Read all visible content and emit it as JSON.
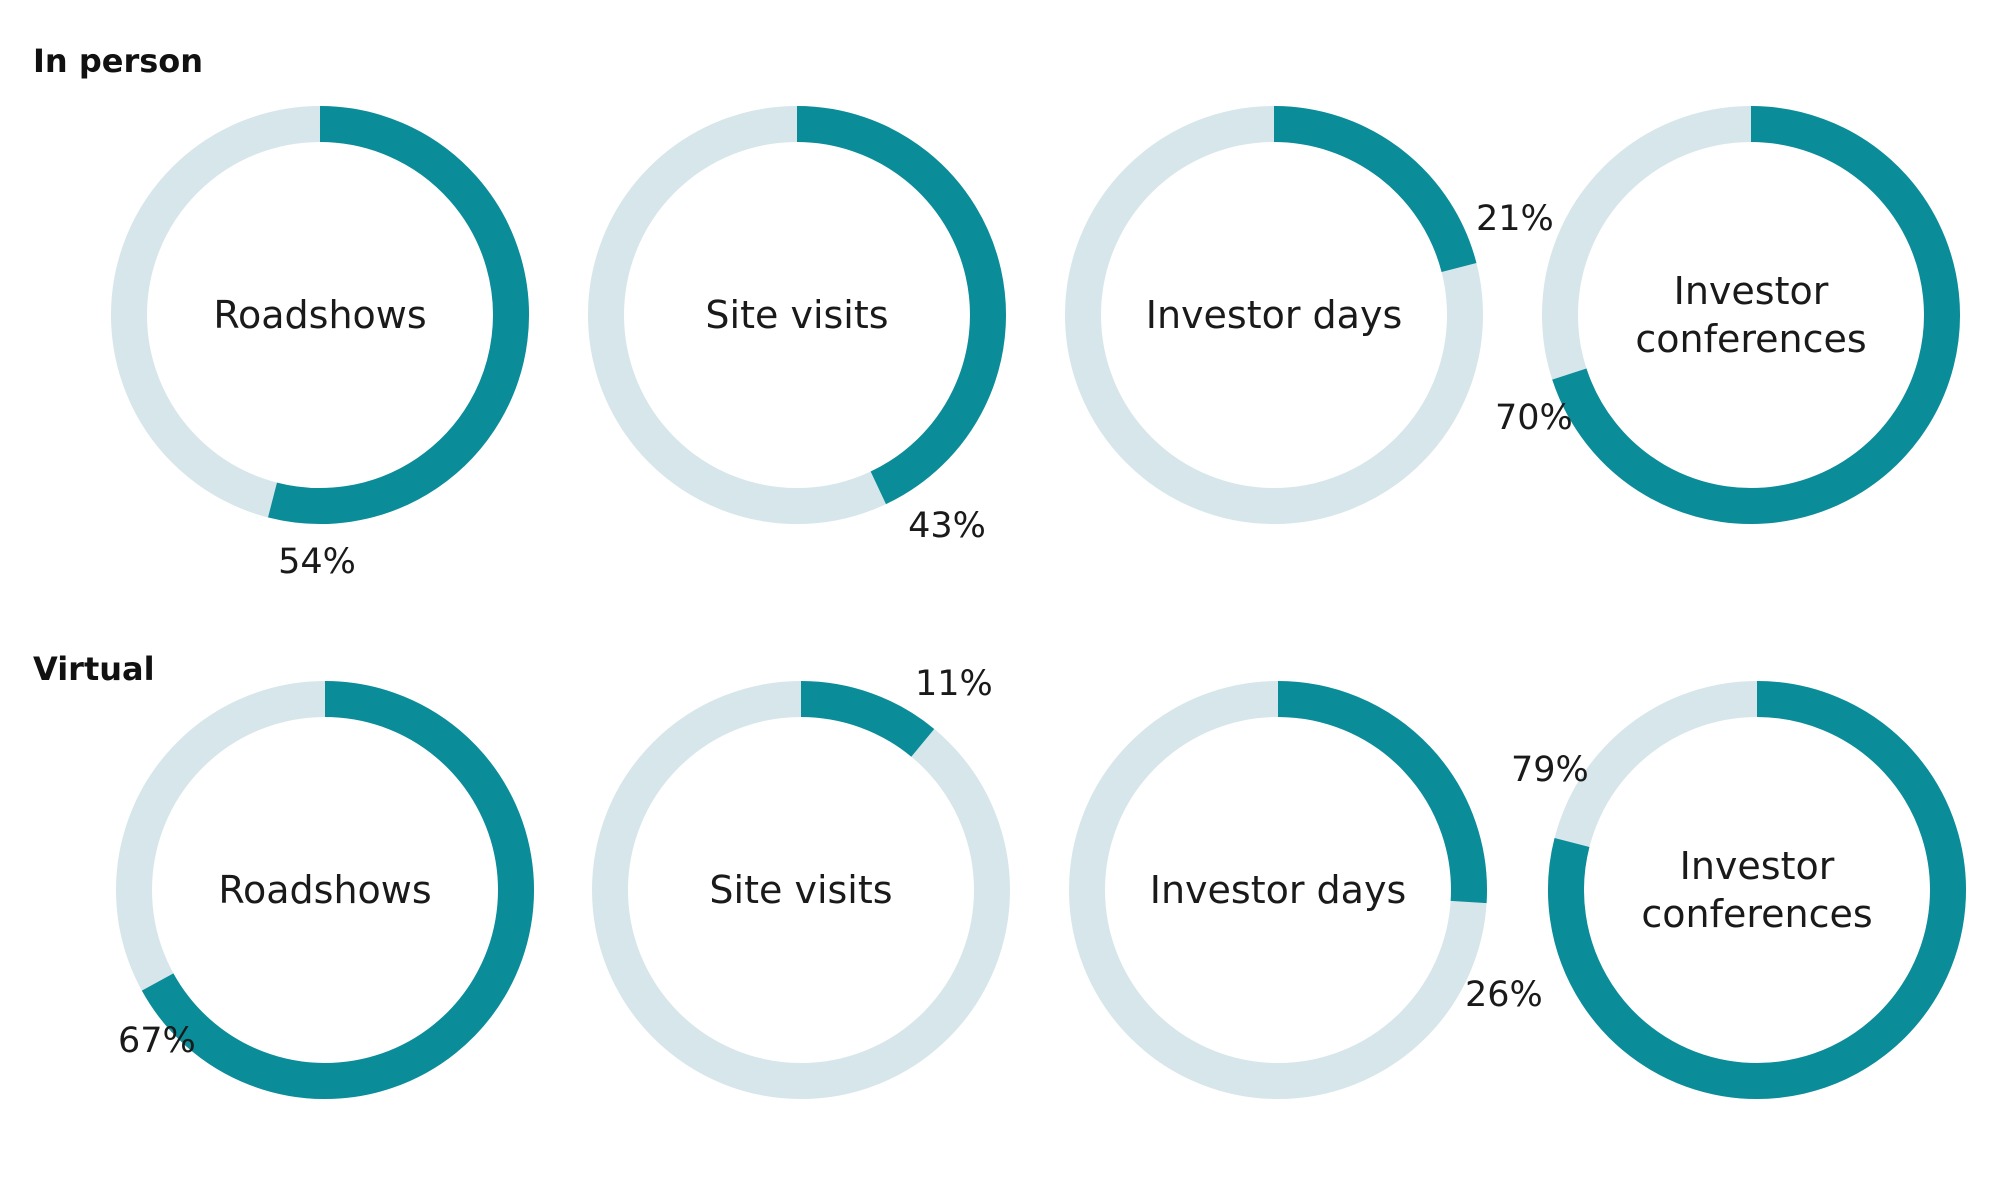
{
  "colors": {
    "accent": "#0a8c99",
    "track": "#d6e6eb",
    "text": "#1a1a1a",
    "background": "#ffffff"
  },
  "chart_data": [
    {
      "type": "donut",
      "title": "In person",
      "categories": [
        "Roadshows",
        "Site visits",
        "Investor days",
        "Investor conferences"
      ],
      "values": [
        54,
        43,
        21,
        70
      ],
      "value_labels": [
        "54%",
        "43%",
        "21%",
        "70%"
      ],
      "unit": "%",
      "ylim": [
        0,
        100
      ]
    },
    {
      "type": "donut",
      "title": "Virtual",
      "categories": [
        "Roadshows",
        "Site visits",
        "Investor days",
        "Investor conferences"
      ],
      "values": [
        67,
        11,
        26,
        79
      ],
      "value_labels": [
        "67%",
        "11%",
        "26%",
        "79%"
      ],
      "unit": "%",
      "ylim": [
        0,
        100
      ]
    }
  ]
}
